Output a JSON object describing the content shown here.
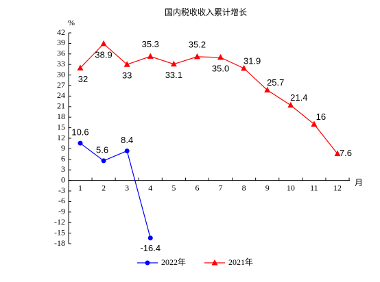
{
  "chart_data": {
    "type": "line",
    "title": "国内税收收入累计增长",
    "y_label": "%",
    "x_label": "月",
    "categories": [
      "1",
      "2",
      "3",
      "4",
      "5",
      "6",
      "7",
      "8",
      "9",
      "10",
      "11",
      "12"
    ],
    "series": [
      {
        "name": "2022年",
        "color": "#0000ff",
        "marker": "circle",
        "values": [
          10.6,
          5.6,
          8.4,
          -16.4,
          null,
          null,
          null,
          null,
          null,
          null,
          null,
          null
        ],
        "value_labels": [
          "10.6",
          "5.6",
          "8.4",
          "-16.4",
          null,
          null,
          null,
          null,
          null,
          null,
          null,
          null
        ]
      },
      {
        "name": "2021年",
        "color": "#ff0000",
        "marker": "triangle",
        "values": [
          32,
          38.9,
          33,
          35.3,
          33.1,
          35.2,
          35,
          31.9,
          25.7,
          21.4,
          16,
          7.6
        ],
        "value_labels": [
          "32",
          "38.9",
          "33",
          "35.3",
          "33.1",
          "35.2",
          "35.0",
          "31.9",
          "25.7",
          "21.4",
          "16",
          "7.6"
        ]
      }
    ],
    "ylim": [
      -18,
      42
    ],
    "yticks": [
      -18,
      -15,
      -12,
      -9,
      -6,
      -3,
      0,
      3,
      6,
      9,
      12,
      15,
      18,
      21,
      24,
      27,
      30,
      33,
      36,
      39,
      42
    ],
    "legend": "bottom"
  }
}
